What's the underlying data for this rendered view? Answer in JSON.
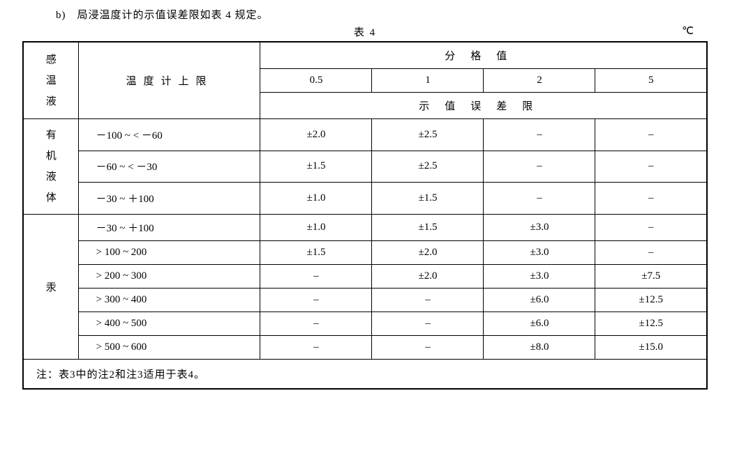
{
  "intro": "b)　局浸温度计的示值误差限如表 4 规定。",
  "caption": "表 4",
  "unit": "℃",
  "headers": {
    "liquid": "感温液",
    "range": "温度计上限",
    "division_header": "分格值",
    "error_header": "示值误差限",
    "divisions": [
      "0.5",
      "1",
      "2",
      "5"
    ]
  },
  "liquids": {
    "organic_chars": [
      "有",
      "机",
      "液",
      "体"
    ],
    "mercury": "汞"
  },
  "rows_organic": [
    {
      "range": "－100 ~ < －60",
      "v": [
        "±2.0",
        "±2.5",
        "–",
        "–"
      ]
    },
    {
      "range": "－60 ~ < －30",
      "v": [
        "±1.5",
        "±2.5",
        "–",
        "–"
      ]
    },
    {
      "range": "－30 ~ ＋100",
      "v": [
        "±1.0",
        "±1.5",
        "–",
        "–"
      ]
    }
  ],
  "rows_mercury": [
    {
      "range": "－30 ~ ＋100",
      "v": [
        "±1.0",
        "±1.5",
        "±3.0",
        "–"
      ]
    },
    {
      "range": "> 100 ~ 200",
      "v": [
        "±1.5",
        "±2.0",
        "±3.0",
        "–"
      ]
    },
    {
      "range": "> 200 ~ 300",
      "v": [
        "–",
        "±2.0",
        "±3.0",
        "±7.5"
      ]
    },
    {
      "range": "> 300 ~ 400",
      "v": [
        "–",
        "–",
        "±6.0",
        "±12.5"
      ]
    },
    {
      "range": "> 400 ~ 500",
      "v": [
        "–",
        "–",
        "±6.0",
        "±12.5"
      ]
    },
    {
      "range": "> 500 ~ 600",
      "v": [
        "–",
        "–",
        "±8.0",
        "±15.0"
      ]
    }
  ],
  "footnote": "注：表3中的注2和注3适用于表4。"
}
